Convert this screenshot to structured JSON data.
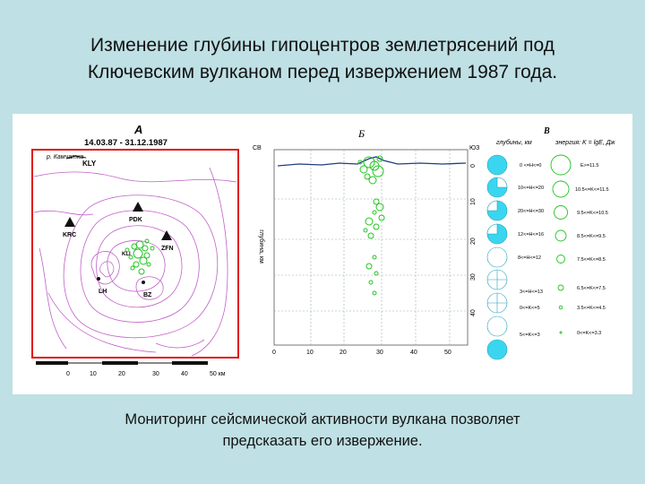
{
  "slide": {
    "title_line1": "Изменение глубины гипоцентров землетрясений под",
    "title_line2": "Ключевским вулканом перед извержением 1987 года.",
    "caption_line1": "Мониторинг сейсмической активности вулкана позволяет",
    "caption_line2": "предсказать его извержение."
  },
  "panel_a": {
    "letter": "А",
    "dates": "14.03.87 - 31.12.1987",
    "stations": [
      "KLY",
      "PDK",
      "KRC",
      "ZFN",
      "KLI",
      "LH",
      "BZ"
    ],
    "map_note": "р. Камчатка",
    "x_ticks": [
      "0",
      "10",
      "20",
      "30",
      "40",
      "50 км"
    ]
  },
  "panel_b": {
    "letter": "Б",
    "left_dir": "СВ",
    "right_dir": "ЮЗ",
    "depth_axis_label": "глубина, км",
    "depth_ticks": [
      "0",
      "10",
      "20",
      "30",
      "40"
    ],
    "x_ticks": [
      "0",
      "10",
      "20",
      "30",
      "40",
      "50"
    ]
  },
  "panel_v": {
    "letter": "В",
    "col1_header": "глубины, км",
    "col2_header": "энергия: K = lgE, Дж",
    "depth_labels": [
      "0 <=H<=0",
      "10<=H<=20",
      "20<=H<=30",
      "12<=H<=16",
      "8<=H<=12",
      "3<=H<=13",
      "0<=K<=5",
      "5<=K<=3"
    ],
    "energy_labels": [
      "Е>=11.5",
      "10.5<=K<=11.5",
      "9.5<=K<=10.5",
      "8.5<=K<=9.5",
      "7.5<=K<=8.5",
      "6.5<=K<=7.5",
      "3.5<=K<=4.5",
      "0<=K<=3.3"
    ]
  },
  "colors": {
    "background": "#bfe0e4",
    "contour": "#c060c8",
    "frame": "#e01010",
    "quake": "#22c422",
    "legend_fill": "#3ad6f0"
  }
}
